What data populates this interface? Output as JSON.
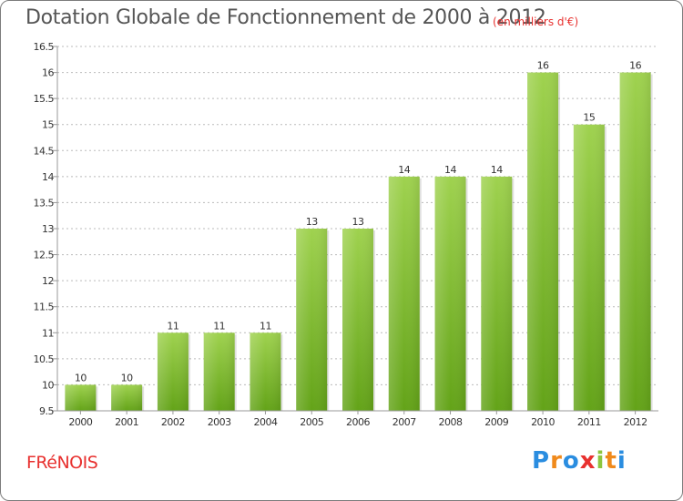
{
  "header": {
    "title": "Dotation Globale de Fonctionnement de 2000 à 2012",
    "subtitle": "(en milliers d'€)"
  },
  "footer": {
    "place": "FRéNOIS",
    "logo": "Proxiti",
    "logo_colors": [
      "#2a8de0",
      "#f08a1c",
      "#2a8de0",
      "#e8312f",
      "#8dc63f",
      "#f08a1c",
      "#2a8de0"
    ]
  },
  "colors": {
    "bar_top": "#9fd24f",
    "bar_bottom": "#63a318",
    "axis_text": "#333333",
    "grid": "#bbbbbb"
  },
  "chart_data": {
    "type": "bar",
    "categories": [
      "2000",
      "2001",
      "2002",
      "2003",
      "2004",
      "2005",
      "2006",
      "2007",
      "2008",
      "2009",
      "2010",
      "2011",
      "2012"
    ],
    "values": [
      10,
      10,
      11,
      11,
      11,
      13,
      13,
      14,
      14,
      14,
      16,
      15,
      16
    ],
    "data_labels": [
      "10",
      "10",
      "11",
      "11",
      "11",
      "13",
      "13",
      "14",
      "14",
      "14",
      "16",
      "15",
      "16"
    ],
    "ylim": [
      9.5,
      16.5
    ],
    "yticks": [
      9.5,
      10,
      10.5,
      11,
      11.5,
      12,
      12.5,
      13,
      13.5,
      14,
      14.5,
      15,
      15.5,
      16,
      16.5
    ],
    "ytick_labels": [
      "9.5",
      "10",
      "10.5",
      "11",
      "11.5",
      "12",
      "12.5",
      "13",
      "13.5",
      "14",
      "14.5",
      "15",
      "15.5",
      "16",
      "16.5"
    ],
    "grid": true,
    "legend": "none"
  }
}
